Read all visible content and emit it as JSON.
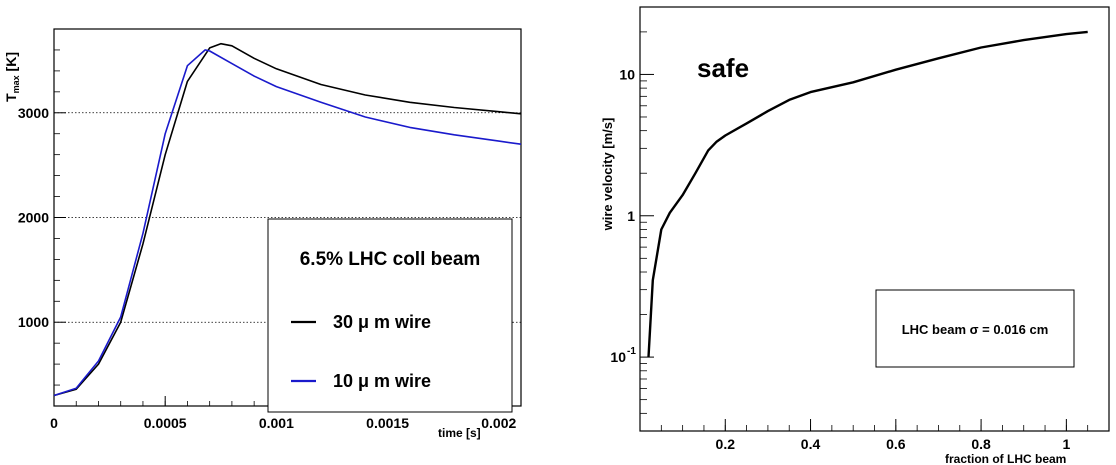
{
  "chart_data": [
    {
      "type": "line",
      "title": "",
      "xlabel": "time [s]",
      "ylabel_main": "T",
      "ylabel_sub": "max",
      "ylabel_unit": " [K]",
      "xlim": [
        0,
        0.0021
      ],
      "ylim": [
        200,
        3800
      ],
      "xticks": [
        0,
        0.0005,
        0.001,
        0.0015,
        0.002
      ],
      "xtick_labels": [
        "0",
        "0.0005",
        "0.001",
        "0.0015",
        "0.002"
      ],
      "yticks": [
        1000,
        2000,
        3000
      ],
      "ytick_labels": [
        "1000",
        "2000",
        "3000"
      ],
      "grid_y": true,
      "legend_position": "lower-right",
      "legend_title": "6.5% LHC coll beam",
      "series": [
        {
          "name": "30 μ m wire",
          "color": "#000000",
          "x": [
            0,
            0.0001,
            0.0002,
            0.0003,
            0.0004,
            0.0005,
            0.0006,
            0.0007,
            0.00075,
            0.0008,
            0.0009,
            0.001,
            0.0012,
            0.0014,
            0.0016,
            0.0018,
            0.002,
            0.0021
          ],
          "y": [
            300,
            360,
            600,
            1000,
            1750,
            2600,
            3300,
            3620,
            3660,
            3640,
            3520,
            3420,
            3270,
            3170,
            3100,
            3050,
            3010,
            2990
          ]
        },
        {
          "name": "10 μ m wire",
          "color": "#1a1acc",
          "x": [
            0,
            0.0001,
            0.0002,
            0.0003,
            0.0004,
            0.0005,
            0.0006,
            0.00068,
            0.0007,
            0.0008,
            0.0009,
            0.001,
            0.0012,
            0.0014,
            0.0016,
            0.0018,
            0.002,
            0.0021
          ],
          "y": [
            300,
            370,
            630,
            1050,
            1850,
            2800,
            3450,
            3600,
            3590,
            3470,
            3350,
            3250,
            3100,
            2960,
            2860,
            2790,
            2730,
            2700
          ]
        }
      ]
    },
    {
      "type": "line",
      "title": "",
      "xlabel": "fraction of LHC beam",
      "ylabel": "wire velocity [m/s]",
      "xlim": [
        0,
        1.1
      ],
      "ylim": [
        0.03,
        30
      ],
      "y_scale": "log",
      "xticks": [
        0.2,
        0.4,
        0.6,
        0.8,
        1.0
      ],
      "xtick_labels": [
        "0.2",
        "0.4",
        "0.6",
        "0.8",
        "1"
      ],
      "yticks": [
        0.1,
        1,
        10
      ],
      "ytick_labels_base": [
        "10",
        "1",
        "10"
      ],
      "ytick_labels_exp": [
        "-1",
        "",
        ""
      ],
      "annotation": "safe",
      "legend_text": "LHC beam σ = 0.016 cm",
      "series": [
        {
          "name": "",
          "color": "#000000",
          "x": [
            0.02,
            0.03,
            0.05,
            0.07,
            0.1,
            0.13,
            0.16,
            0.18,
            0.2,
            0.25,
            0.3,
            0.35,
            0.4,
            0.5,
            0.6,
            0.7,
            0.8,
            0.9,
            1.0,
            1.05
          ],
          "y": [
            0.1,
            0.35,
            0.8,
            1.05,
            1.4,
            2.0,
            2.9,
            3.35,
            3.7,
            4.5,
            5.5,
            6.6,
            7.5,
            8.8,
            10.8,
            13.0,
            15.5,
            17.5,
            19.3,
            20.0
          ]
        }
      ]
    }
  ]
}
